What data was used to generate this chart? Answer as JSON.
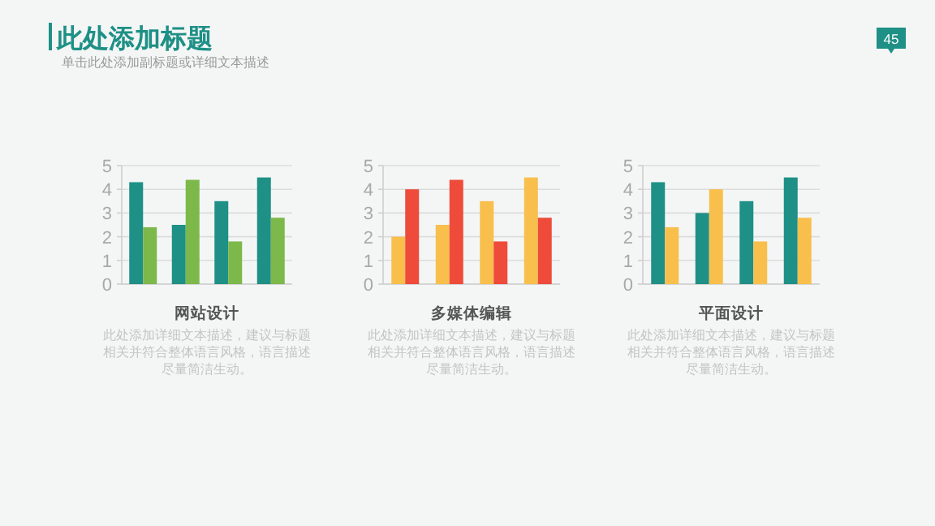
{
  "chart_data": [
    {
      "type": "other",
      "title": "此处添加标题",
      "subtitle": "单击此处添加副标题或详细文本描述",
      "annotations": [
        "45"
      ]
    },
    {
      "type": "bar",
      "title": "网站设计",
      "categories": [
        null,
        null,
        null,
        null
      ],
      "tick_labels": "y",
      "ylim": [
        0,
        5
      ],
      "yticks": [
        0,
        1,
        2,
        3,
        4,
        5
      ],
      "grid": "y",
      "series": [
        {
          "color": "#1e9086",
          "values": [
            4.3,
            2.5,
            3.5,
            4.5
          ]
        },
        {
          "color": "#7cb84a",
          "values": [
            2.4,
            4.4,
            1.8,
            2.8
          ]
        }
      ],
      "annotations": [
        "此处添加详细文本描述，建议与标题相关并符合整体语言风格，语言描述尽量简洁生动。"
      ]
    },
    {
      "type": "bar",
      "title": "多媒体编辑",
      "categories": [
        null,
        null,
        null,
        null
      ],
      "tick_labels": "y",
      "ylim": [
        0,
        5
      ],
      "yticks": [
        0,
        1,
        2,
        3,
        4,
        5
      ],
      "grid": "y",
      "series": [
        {
          "color": "#f8bf4c",
          "values": [
            2.0,
            2.5,
            3.5,
            4.5
          ]
        },
        {
          "color": "#ee4b3b",
          "values": [
            4.0,
            4.4,
            1.8,
            2.8
          ]
        }
      ],
      "annotations": [
        "此处添加详细文本描述，建议与标题相关并符合整体语言风格，语言描述尽量简洁生动。"
      ]
    },
    {
      "type": "bar",
      "title": "平面设计",
      "categories": [
        null,
        null,
        null,
        null
      ],
      "tick_labels": "y",
      "ylim": [
        0,
        5
      ],
      "yticks": [
        0,
        1,
        2,
        3,
        4,
        5
      ],
      "grid": "y",
      "series": [
        {
          "color": "#1e9086",
          "values": [
            4.3,
            3.0,
            3.5,
            4.5
          ]
        },
        {
          "color": "#f8bf4c",
          "values": [
            2.4,
            4.0,
            1.8,
            2.8
          ]
        }
      ],
      "annotations": [
        "此处添加详细文本描述，建议与标题相关并符合整体语言风格，语言描述尽量简洁生动。"
      ]
    }
  ]
}
